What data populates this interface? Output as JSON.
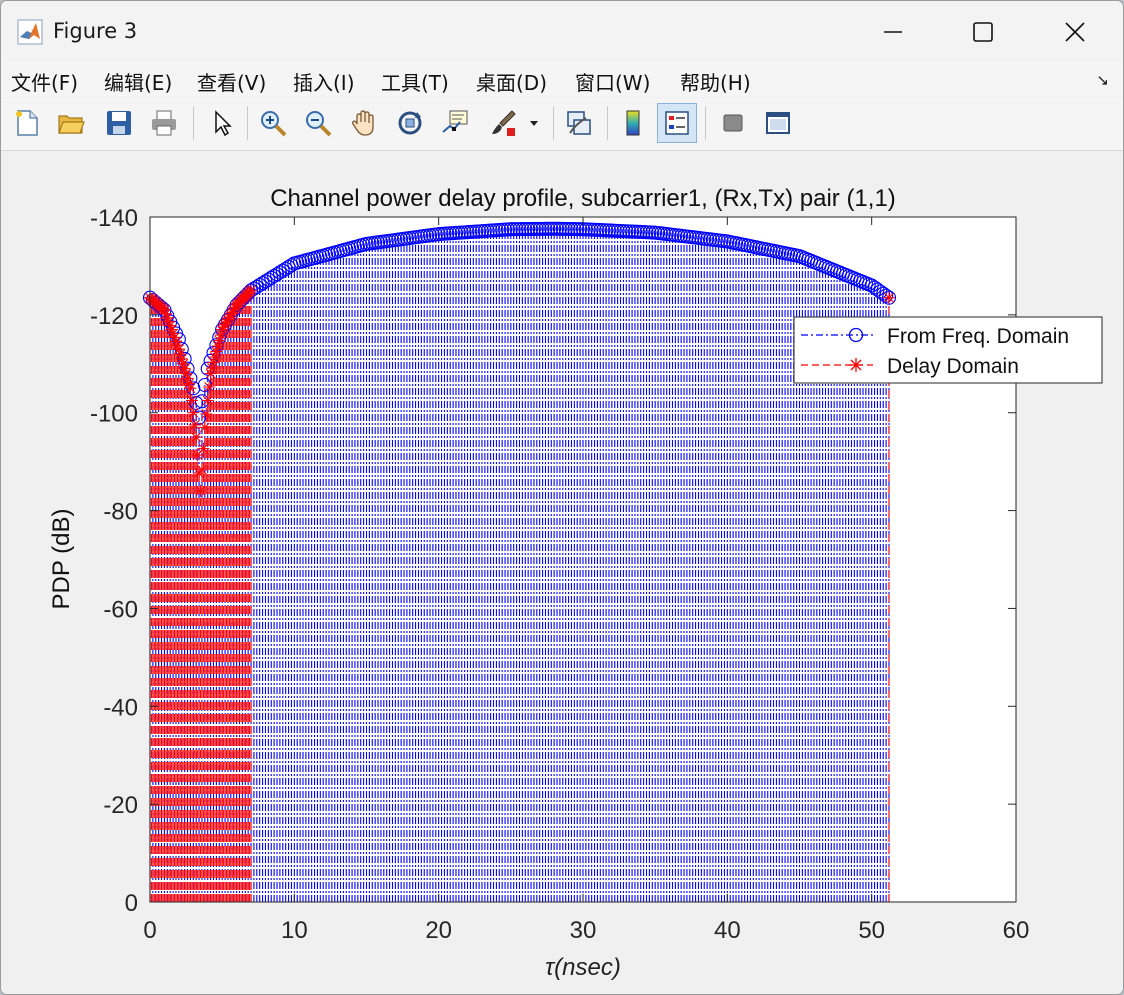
{
  "window": {
    "title": "Figure 3"
  },
  "menu": [
    {
      "label": "文件(F)"
    },
    {
      "label": "编辑(E)"
    },
    {
      "label": "查看(V)"
    },
    {
      "label": "插入(I)"
    },
    {
      "label": "工具(T)"
    },
    {
      "label": "桌面(D)"
    },
    {
      "label": "窗口(W)"
    },
    {
      "label": "帮助(H)"
    }
  ],
  "toolbar": [
    {
      "icon": "new-figure-icon"
    },
    {
      "icon": "open-file-icon"
    },
    {
      "icon": "save-icon"
    },
    {
      "icon": "print-icon"
    },
    {
      "icon": "pointer-icon"
    },
    {
      "icon": "zoom-in-icon"
    },
    {
      "icon": "zoom-out-icon"
    },
    {
      "icon": "pan-icon"
    },
    {
      "icon": "rotate-3d-icon"
    },
    {
      "icon": "data-cursor-icon"
    },
    {
      "icon": "brush-icon"
    },
    {
      "icon": "link-plot-icon"
    },
    {
      "icon": "colorbar-icon"
    },
    {
      "icon": "legend-icon",
      "active": true
    },
    {
      "icon": "hide-plot-tools-icon"
    },
    {
      "icon": "show-plot-tools-icon"
    }
  ],
  "chart_data": {
    "type": "line",
    "title": "Channel power delay profile, subcarrier1, (Rx,Tx) pair (1,1)",
    "xlabel": "τ(nsec)",
    "ylabel": "PDP (dB)",
    "xlim": [
      0,
      60
    ],
    "ylim": [
      0,
      -140
    ],
    "y_direction": "reversed",
    "xticks": [
      "0",
      "10",
      "20",
      "30",
      "40",
      "50",
      "60"
    ],
    "yticks": [
      "0",
      "-20",
      "-40",
      "-60",
      "-80",
      "-100",
      "-120",
      "-140"
    ],
    "legend_position": "top-right",
    "series": [
      {
        "name": "From Freq. Domain",
        "color": "#0000ff",
        "line": "dash-dot",
        "marker": "circle",
        "x": [
          0,
          1,
          2,
          3,
          3.4,
          4,
          5,
          6,
          7,
          10,
          15,
          20,
          25,
          28,
          30,
          35,
          40,
          45,
          50,
          51.2
        ],
        "y": [
          -123.5,
          -121,
          -115,
          -105,
          -99,
          -109,
          -117,
          -122,
          -125,
          -130.5,
          -134.5,
          -136.5,
          -137.5,
          -137.6,
          -137.5,
          -136.8,
          -135,
          -132,
          -126,
          -123.5
        ]
      },
      {
        "name": "Delay Domain",
        "color": "#ff0000",
        "line": "dashed",
        "marker": "asterisk",
        "x": [
          0,
          1,
          2,
          2.8,
          3.2,
          3.5,
          3.8,
          4.2,
          5,
          6,
          7,
          51.2
        ],
        "y": [
          -123.5,
          -121,
          -113,
          -105,
          -95,
          -84,
          -97,
          -108,
          -117,
          -122,
          -125,
          -123.5
        ]
      }
    ]
  }
}
